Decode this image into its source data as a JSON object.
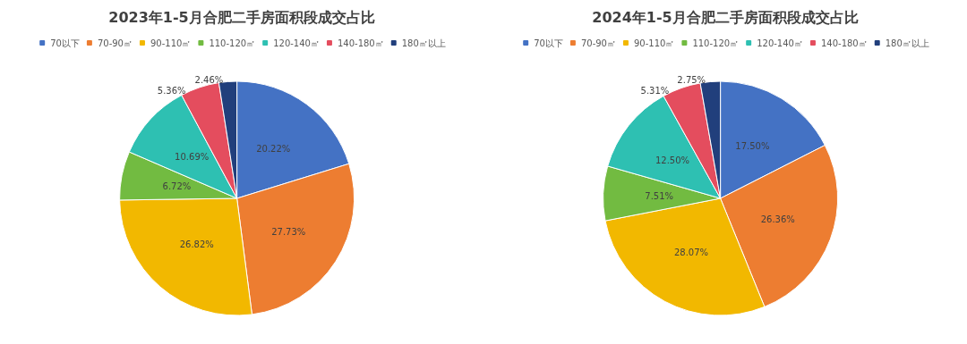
{
  "chart_data": [
    {
      "type": "pie",
      "title": "2023年1-5月合肥二手房面积段成交占比",
      "categories": [
        "70以下",
        "70-90㎡",
        "90-110㎡",
        "110-120㎡",
        "120-140㎡",
        "140-180㎡",
        "180㎡以上"
      ],
      "values": [
        20.22,
        27.73,
        26.82,
        6.72,
        10.69,
        5.36,
        2.46
      ],
      "value_labels": [
        "20.22%",
        "27.73%",
        "26.82%",
        "6.72%",
        "10.69%",
        "5.36%",
        "2.46%"
      ],
      "colors": [
        "#4472c4",
        "#ed7d31",
        "#f2b800",
        "#72bb41",
        "#2ec0b2",
        "#e44d5e",
        "#213f7c"
      ],
      "legend": "top"
    },
    {
      "type": "pie",
      "title": "2024年1-5月合肥二手房面积段成交占比",
      "categories": [
        "70以下",
        "70-90㎡",
        "90-110㎡",
        "110-120㎡",
        "120-140㎡",
        "140-180㎡",
        "180㎡以上"
      ],
      "values": [
        17.5,
        26.36,
        28.07,
        7.51,
        12.5,
        5.31,
        2.75
      ],
      "value_labels": [
        "17.50%",
        "26.36%",
        "28.07%",
        "7.51%",
        "12.50%",
        "5.31%",
        "2.75%"
      ],
      "colors": [
        "#4472c4",
        "#ed7d31",
        "#f2b800",
        "#72bb41",
        "#2ec0b2",
        "#e44d5e",
        "#213f7c"
      ],
      "legend": "top"
    }
  ]
}
